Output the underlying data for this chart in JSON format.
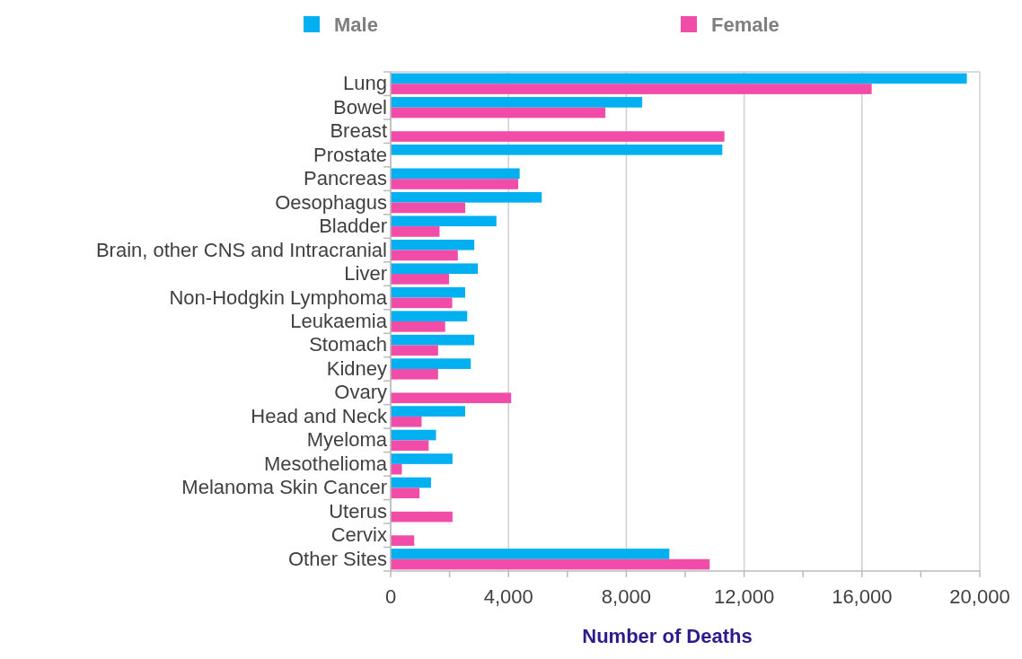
{
  "chart_data": {
    "type": "bar",
    "orientation": "horizontal",
    "xlabel": "Number of Deaths",
    "categories": [
      "Lung",
      "Bowel",
      "Breast",
      "Prostate",
      "Pancreas",
      "Oesophagus",
      "Bladder",
      "Brain, other CNS and Intracranial",
      "Liver",
      "Non-Hodgkin Lymphoma",
      "Leukaemia",
      "Stomach",
      "Kidney",
      "Ovary",
      "Head and Neck",
      "Myeloma",
      "Mesothelioma",
      "Melanoma Skin Cancer",
      "Uterus",
      "Cervix",
      "Other Sites"
    ],
    "series": [
      {
        "name": "Male",
        "color": "#00b0f0",
        "values": [
          19560,
          8540,
          null,
          11260,
          4380,
          5130,
          3590,
          2840,
          2960,
          2530,
          2600,
          2840,
          2720,
          null,
          2530,
          1540,
          2100,
          1370,
          null,
          null,
          9460
        ]
      },
      {
        "name": "Female",
        "color": "#f04ca8",
        "values": [
          16330,
          7290,
          11330,
          null,
          4330,
          2530,
          1660,
          2280,
          1980,
          2090,
          1850,
          1610,
          1610,
          4090,
          1050,
          1290,
          380,
          980,
          2100,
          800,
          10830
        ]
      }
    ],
    "xlim": [
      0,
      20000
    ],
    "xticks": [
      0,
      {
        "value": 2000,
        "label": null
      },
      {
        "value": 4000,
        "label": "4,000"
      },
      {
        "value": 6000,
        "label": null
      },
      {
        "value": 8000,
        "label": "8,000"
      },
      {
        "value": 10000,
        "label": null
      },
      {
        "value": 12000,
        "label": "12,000"
      },
      {
        "value": 14000,
        "label": null
      },
      {
        "value": 16000,
        "label": "16,000"
      },
      {
        "value": 18000,
        "label": null
      },
      {
        "value": 20000,
        "label": "20,000"
      }
    ],
    "grid": "x",
    "legend": "top"
  }
}
